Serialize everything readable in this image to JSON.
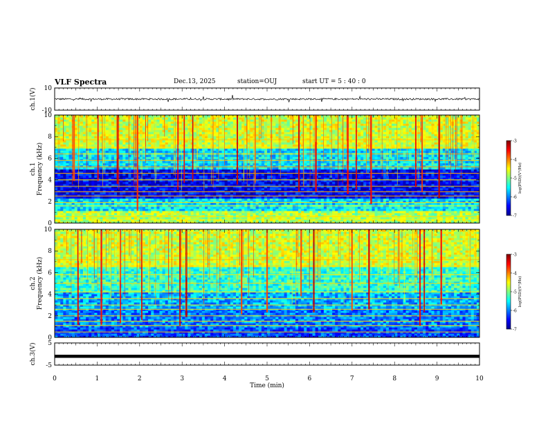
{
  "header": {
    "title": "VLF Spectra",
    "date": "Dec.13, 2025",
    "station": "station=OUJ",
    "start_time": "start  UT =   5 : 40 : 0"
  },
  "colors": {
    "colormap": [
      "#00008f",
      "#0000ff",
      "#0080ff",
      "#00ffff",
      "#80ff80",
      "#ffff00",
      "#ff8000",
      "#ff0000",
      "#800000"
    ],
    "trace": "#000000"
  },
  "chart_data": [
    {
      "id": "ch1-waveform",
      "type": "line",
      "ylabel": "ch.1(V)",
      "ylim": [
        -10,
        10
      ],
      "yticks": [
        "10",
        "-10"
      ],
      "xlim": [
        0,
        10
      ],
      "description_values": {
        "baseline": 0,
        "noise_amplitude": 1.5
      }
    },
    {
      "id": "ch1-spectrogram",
      "type": "heatmap",
      "ylabel_line1": "ch.1",
      "ylabel_line2": "Frequency (kHz)",
      "ylim": [
        0,
        10
      ],
      "yticks": [
        "0",
        "2",
        "4",
        "6",
        "8",
        "10"
      ],
      "xlim": [
        0,
        10
      ],
      "colorbar": {
        "label": "log(PSD)(V²/Hz)",
        "range": [
          -7,
          -3
        ],
        "ticks": [
          "-3",
          "-4",
          "-5",
          "-6",
          "-7"
        ]
      },
      "bands": [
        {
          "from": 0,
          "to": 1.2,
          "level": 0.55
        },
        {
          "from": 1.2,
          "to": 2.4,
          "level": 0.35
        },
        {
          "from": 2.4,
          "to": 5.0,
          "level": 0.12
        },
        {
          "from": 5.0,
          "to": 7.0,
          "level": 0.35
        },
        {
          "from": 7.0,
          "to": 10,
          "level": 0.58
        }
      ],
      "lines_khz": [
        0.3,
        0.6,
        1.6,
        1.9,
        2.5,
        2.9,
        3.4,
        4.0,
        4.6,
        5.2,
        5.8,
        6.4,
        7.0,
        7.7
      ],
      "streak_minutes": [
        0.45,
        1.02,
        1.48,
        1.95,
        2.9,
        3.05,
        3.25,
        4.3,
        4.72,
        5.75,
        6.15,
        6.9,
        7.1,
        7.45,
        8.5,
        8.65,
        9.05
      ]
    },
    {
      "id": "ch2-spectrogram",
      "type": "heatmap",
      "ylabel_line1": "ch.2",
      "ylabel_line2": "Frequency (kHz)",
      "ylim": [
        0,
        10
      ],
      "yticks": [
        "0",
        "2",
        "4",
        "6",
        "8",
        "10"
      ],
      "xlim": [
        0,
        10
      ],
      "colorbar": {
        "label": "log(PSD)(V²/Hz)",
        "range": [
          -7,
          -3
        ],
        "ticks": [
          "-3",
          "-4",
          "-5",
          "-6",
          "-7"
        ]
      },
      "bands": [
        {
          "from": 0,
          "to": 1.0,
          "level": 0.2
        },
        {
          "from": 1.0,
          "to": 2.6,
          "level": 0.25
        },
        {
          "from": 2.6,
          "to": 4.2,
          "level": 0.3
        },
        {
          "from": 4.2,
          "to": 6.5,
          "level": 0.42
        },
        {
          "from": 6.5,
          "to": 10,
          "level": 0.58
        }
      ],
      "lines_khz": [
        0.5,
        1.1,
        1.5,
        2.0,
        2.6,
        3.0,
        3.6,
        4.2,
        5.0,
        5.8,
        6.6,
        7.2
      ],
      "streak_minutes": [
        0.55,
        1.1,
        1.55,
        2.05,
        2.95,
        3.1,
        4.4,
        5.0,
        5.8,
        6.1,
        7.0,
        7.4,
        8.6,
        8.7,
        9.1
      ]
    },
    {
      "id": "ch3-waveform",
      "type": "line",
      "ylabel": "ch.3(V)",
      "ylim": [
        -5,
        5
      ],
      "yticks": [
        "5",
        "-5"
      ],
      "xlim": [
        0,
        10
      ],
      "xlabel": "Time (min)",
      "xticks": [
        "0",
        "1",
        "2",
        "3",
        "4",
        "5",
        "6",
        "7",
        "8",
        "9",
        "10"
      ],
      "description_values": {
        "baseline": -1,
        "noise_amplitude": 0
      }
    }
  ]
}
